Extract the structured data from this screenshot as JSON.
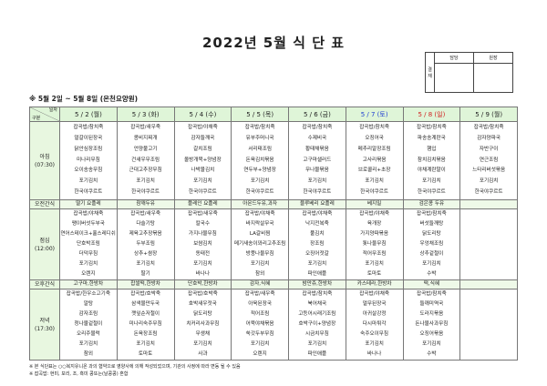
{
  "title": "2022년 5월 식 단 표",
  "approval": {
    "label": "결재",
    "cols": [
      "담당",
      "원장"
    ]
  },
  "subtitle": "※ 5월 2일 ~ 5월 8일 (온천요양원)",
  "corner": {
    "top": "일자",
    "bottom": "구분"
  },
  "colors": {
    "header_bg": "#dff5d8",
    "saturday": "#2040d0",
    "sunday": "#d02020"
  },
  "days": [
    {
      "label": "5 / 2 (월)",
      "color": ""
    },
    {
      "label": "5 / 3 (화)",
      "color": ""
    },
    {
      "label": "5 / 4 (수)",
      "color": ""
    },
    {
      "label": "5 / 5 (목)",
      "color": ""
    },
    {
      "label": "5 / 6 (금)",
      "color": ""
    },
    {
      "label": "5 / 7 (토)",
      "color": "blue"
    },
    {
      "label": "5 / 8 (일)",
      "color": "red"
    },
    {
      "label": "5 / 9 (월)",
      "color": ""
    }
  ],
  "meals": [
    {
      "key": "breakfast",
      "label": "아침",
      "time": "(07:30)",
      "type": "meal",
      "cells": [
        [
          "잡곡밥/참치죽",
          "얼갈이된장국",
          "닭안심장조림",
          "미나리무침",
          "오이송송무침",
          "포기김치",
          "한국야쿠르트"
        ],
        [
          "잡곡밥/새우죽",
          "콩비지찌개",
          "언양불고기",
          "건새우무조림",
          "근대고추장무침",
          "포기김치",
          "한국야쿠르트"
        ],
        [
          "잡곡밥/야채죽",
          "감자들깨국",
          "갈치조림",
          "올방개묵+양념장",
          "나박물김치",
          "포기김치",
          "한국야쿠르트"
        ],
        [
          "잡곡밥/참치죽",
          "유부주머니국",
          "서리태조림",
          "돈육김치볶음",
          "연두부+양념장",
          "포기김치",
          "한국야쿠르트"
        ],
        [
          "잡곡밥/참치죽",
          "수제비국",
          "황태채볶음",
          "고구마샐러드",
          "무나물볶음",
          "포기김치",
          "한국야쿠르트"
        ],
        [
          "잡곡밥/참치죽",
          "오징어국",
          "메추리알장조림",
          "고사리볶음",
          "브로콜리+초장",
          "포기김치",
          "한국야쿠르트"
        ],
        [
          "잡곡밥/참치죽",
          "파송송계란국",
          "햄입",
          "참치김치볶음",
          "야채계란말이",
          "포기김치",
          "한국야쿠르트"
        ],
        [
          "잡곡밥/참치죽",
          "감자양파국",
          "자반구이",
          "연근조림",
          "느타리버섯볶음",
          "포기김치",
          "한국야쿠르트"
        ]
      ]
    },
    {
      "key": "am-snack",
      "label": "오전간식",
      "time": "",
      "type": "snack",
      "cells": [
        [
          "딸기 요플레"
        ],
        [
          "참깨두유"
        ],
        [
          "플레인 요플레"
        ],
        [
          "아몬드두유,과자"
        ],
        [
          "블루베리 요플레"
        ],
        [
          "베지밀"
        ],
        [
          "검은콩 두유"
        ],
        []
      ]
    },
    {
      "key": "lunch",
      "label": "점심",
      "time": "(12:00)",
      "type": "meal",
      "cells": [
        [
          "잡곡밥/야채죽",
          "팽이버섯두부국",
          "연어스테이크+홀스레디쉬",
          "단호박조림",
          "더덕무침",
          "포기김치",
          "오렌지"
        ],
        [
          "잡곡밥/새우죽",
          "다슬기탕",
          "제육고추장볶음",
          "두부조림",
          "상추+쌈장",
          "포기김치",
          "딸기"
        ],
        [
          "잡곡밥/새우죽",
          "칼국수",
          "가지나물무침",
          "보쌈김치",
          "동태전",
          "포기김치",
          "바나나"
        ],
        [
          "잡곡밥/야채죽",
          "바지락살무국",
          "LA갈비찜",
          "메기새송이꽈리고추조림",
          "방풍나물무침",
          "포기김치",
          "참외"
        ],
        [
          "잡곡밥/야채죽",
          "낙지전복죽",
          "풀김치",
          "장조림",
          "오징어젓갈",
          "포기김치",
          "파인애플"
        ],
        [
          "잡곡밥/야채죽",
          "육개장",
          "가지양파볶음",
          "톳나물무침",
          "적어무조림",
          "포기김치",
          "토마토"
        ],
        [
          "잡곡밥/참치죽",
          "버섯들깨탕",
          "닭도리탕",
          "우엉채조림",
          "상추겉절이",
          "포기김치",
          "수박"
        ],
        []
      ]
    },
    {
      "key": "pm-snack",
      "label": "오후간식",
      "time": "",
      "type": "snack",
      "cells": [
        [
          "고구마,한방차"
        ],
        [
          "찹쌀떡,한방차"
        ],
        [
          "단호박,한방차"
        ],
        [
          "감자,식혜"
        ],
        [
          "밤만쥬,한방차"
        ],
        [
          "카스테라,한방차"
        ],
        [
          "떡,식혜"
        ],
        []
      ]
    },
    {
      "key": "dinner",
      "label": "저녁",
      "time": "(17:30)",
      "type": "meal",
      "cells": [
        [
          "잡곡밥/한우소고기죽",
          "알탕",
          "감자조림",
          "청나물겉절이",
          "오리주물럭",
          "포기김치",
          "참외"
        ],
        [
          "잡곡밥/호박죽",
          "삼색물만두국",
          "깻잎순저절이",
          "미나리숙주무침",
          "돈육장조림",
          "포기김치",
          "토마토"
        ],
        [
          "잡곡밥/호박죽",
          "호박새우젓국",
          "닭도리탕",
          "치커리사과무침",
          "무생채",
          "포기김치",
          "사과"
        ],
        [
          "잡곡밥/새우죽",
          "아욱된장국",
          "적어조림",
          "어묵야채볶음",
          "쑥갓두부무침",
          "포기김치",
          "오렌지"
        ],
        [
          "잡곡밥/참치죽",
          "북어채국",
          "고등어시래기조림",
          "호박구이+양념장",
          "시금치무침",
          "포기김치",
          "파인애플"
        ],
        [
          "잡곡밥/야채죽",
          "얼무된장국",
          "아귀살강정",
          "다시마튀각",
          "숙주오이무침",
          "포기김치",
          "바나나"
        ],
        [
          "잡곡밥/참치죽",
          "들깨미역국",
          "도라지볶음",
          "돈나물사과무침",
          "오징어볶음",
          "포기김치",
          "수박"
        ],
        []
      ]
    }
  ],
  "notes": [
    "※ 본 식단표는 ○○복지유니온 과의 협약으로 영양사에 의해 작성되었으며, 기관의 사정에 따라 변동 될 수 있음",
    "※ 잡곡밥: 현미, 보리, 조, 흑미 콩또는(날콩콩) 혼합"
  ]
}
